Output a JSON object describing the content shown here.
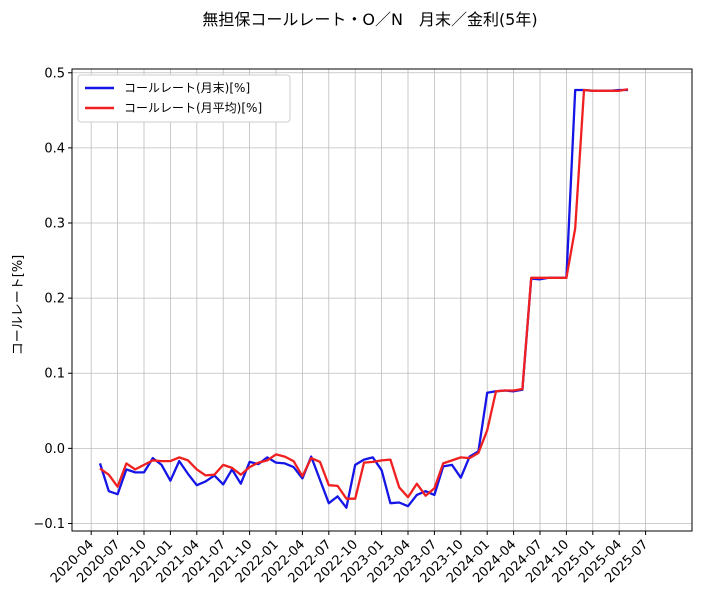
{
  "chart_data": {
    "type": "line",
    "title": "無担保コールレート・O／N　月末／金利(5年)",
    "xlabel": "",
    "ylabel": "コールレート[%]",
    "ylim": [
      -0.11,
      0.505
    ],
    "y_ticks": [
      -0.1,
      0.0,
      0.1,
      0.2,
      0.3,
      0.4,
      0.5
    ],
    "y_tick_labels": [
      "−0.1",
      "0.0",
      "0.1",
      "0.2",
      "0.3",
      "0.4",
      "0.5"
    ],
    "x_tick_labels": [
      "2020-04",
      "2020-07",
      "2020-10",
      "2021-01",
      "2021-04",
      "2021-07",
      "2021-10",
      "2022-01",
      "2022-04",
      "2022-07",
      "2022-10",
      "2023-01",
      "2023-04",
      "2023-07",
      "2023-10",
      "2024-01",
      "2024-04",
      "2024-07",
      "2024-10",
      "2025-01",
      "2025-04",
      "2025-07"
    ],
    "x_tick_index": [
      -1,
      2,
      5,
      8,
      11,
      14,
      17,
      20,
      23,
      26,
      29,
      32,
      35,
      38,
      41,
      44,
      47,
      50,
      53,
      56,
      59,
      62
    ],
    "grid": true,
    "legend_position": "top-left",
    "series": [
      {
        "name": "コールレート(月末)[%]",
        "color": "#1515e8",
        "values": [
          -0.02,
          -0.057,
          -0.061,
          -0.028,
          -0.032,
          -0.032,
          -0.013,
          -0.022,
          -0.043,
          -0.017,
          -0.034,
          -0.049,
          -0.044,
          -0.036,
          -0.048,
          -0.028,
          -0.047,
          -0.018,
          -0.021,
          -0.012,
          -0.019,
          -0.02,
          -0.025,
          -0.04,
          -0.011,
          -0.042,
          -0.073,
          -0.064,
          -0.079,
          -0.022,
          -0.015,
          -0.012,
          -0.029,
          -0.073,
          -0.072,
          -0.077,
          -0.062,
          -0.057,
          -0.062,
          -0.024,
          -0.022,
          -0.039,
          -0.011,
          -0.004,
          0.074,
          0.076,
          0.077,
          0.076,
          0.078,
          0.226,
          0.225,
          0.227,
          0.227,
          0.227,
          0.477,
          0.477,
          0.476,
          0.476,
          0.476,
          0.477,
          0.477
        ]
      },
      {
        "name": "コールレート(月平均)[%]",
        "color": "#f02020",
        "values": [
          -0.027,
          -0.035,
          -0.051,
          -0.02,
          -0.028,
          -0.022,
          -0.016,
          -0.017,
          -0.017,
          -0.012,
          -0.016,
          -0.028,
          -0.036,
          -0.035,
          -0.022,
          -0.026,
          -0.035,
          -0.025,
          -0.019,
          -0.016,
          -0.008,
          -0.011,
          -0.017,
          -0.037,
          -0.013,
          -0.018,
          -0.049,
          -0.05,
          -0.067,
          -0.067,
          -0.019,
          -0.018,
          -0.016,
          -0.015,
          -0.052,
          -0.065,
          -0.047,
          -0.063,
          -0.053,
          -0.02,
          -0.016,
          -0.012,
          -0.013,
          -0.006,
          0.024,
          0.076,
          0.077,
          0.077,
          0.079,
          0.227,
          0.227,
          0.227,
          0.227,
          0.227,
          0.293,
          0.477,
          0.476,
          0.476,
          0.476,
          0.476,
          0.478
        ]
      }
    ]
  }
}
